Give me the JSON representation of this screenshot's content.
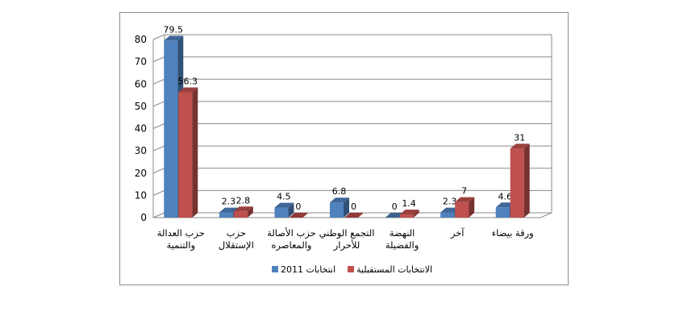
{
  "chart_data": {
    "type": "bar",
    "title": "",
    "xlabel": "",
    "ylabel": "",
    "ylim": [
      0,
      80
    ],
    "yticks": [
      0,
      10,
      20,
      30,
      40,
      50,
      60,
      70,
      80
    ],
    "grid": true,
    "legend_position": "bottom",
    "categories": [
      [
        "حزب العدالة",
        "والتنمية"
      ],
      [
        "حزب",
        "الإستقلال"
      ],
      [
        "حزب الأصالة",
        "والمعاصره"
      ],
      [
        "التجمع الوطني",
        "للأحرار"
      ],
      [
        "النهضة",
        "والفضيلة"
      ],
      [
        "آخر"
      ],
      [
        "ورقة بيضاء"
      ]
    ],
    "series": [
      {
        "name": "انتخابات 2011",
        "values": [
          79.5,
          2.3,
          4.5,
          6.8,
          0,
          2.3,
          4.6
        ],
        "color": "#4f81bd"
      },
      {
        "name": "الانتخابات المستقبلية",
        "values": [
          56.3,
          2.8,
          0,
          0,
          1.4,
          7,
          31
        ],
        "color": "#c0504d"
      }
    ]
  }
}
